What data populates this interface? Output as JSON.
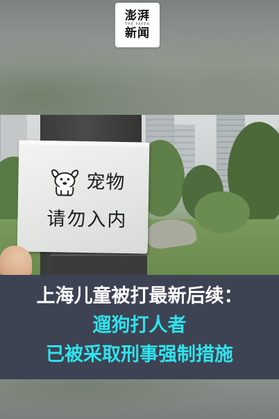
{
  "logo": {
    "top": "澎湃",
    "tagline": "THE PAPER",
    "bottom": "新闻"
  },
  "sign": {
    "line1": "宠物",
    "line2": "请勿入内",
    "icon": "dog-icon"
  },
  "caption": {
    "line1": "上海儿童被打最新后续：",
    "line2": "遛狗打人者",
    "line3": "已被采取刑事强制措施",
    "colors": {
      "band": "#3d4353",
      "primary_text": "#ffffff",
      "accent_text": "#2fe2ec"
    }
  }
}
